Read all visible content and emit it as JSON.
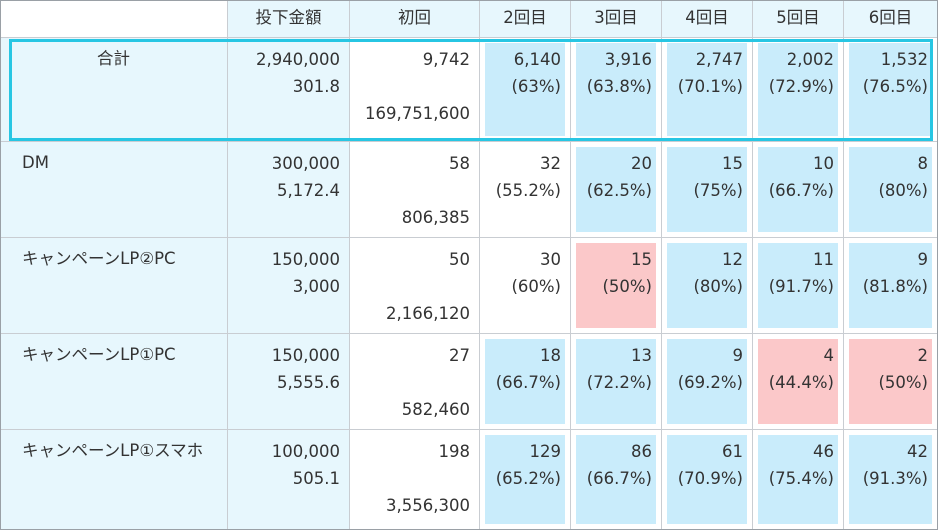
{
  "columns": [
    "",
    "投下金額",
    "初回",
    "2回目",
    "3回目",
    "4回目",
    "5回目",
    "6回目"
  ],
  "rows": [
    {
      "label": "合計",
      "investment": "2,940,000",
      "cpa": "301.8",
      "first_count": "9,742",
      "first_revenue": "169,751,600",
      "repeats": [
        {
          "count": "6,140",
          "rate": "(63%)",
          "highlight": "blue"
        },
        {
          "count": "3,916",
          "rate": "(63.8%)",
          "highlight": "blue"
        },
        {
          "count": "2,747",
          "rate": "(70.1%)",
          "highlight": "blue"
        },
        {
          "count": "2,002",
          "rate": "(72.9%)",
          "highlight": "blue"
        },
        {
          "count": "1,532",
          "rate": "(76.5%)",
          "highlight": "blue"
        }
      ]
    },
    {
      "label": "DM",
      "investment": "300,000",
      "cpa": "5,172.4",
      "first_count": "58",
      "first_revenue": "806,385",
      "repeats": [
        {
          "count": "32",
          "rate": "(55.2%)",
          "highlight": "none"
        },
        {
          "count": "20",
          "rate": "(62.5%)",
          "highlight": "blue"
        },
        {
          "count": "15",
          "rate": "(75%)",
          "highlight": "blue"
        },
        {
          "count": "10",
          "rate": "(66.7%)",
          "highlight": "blue"
        },
        {
          "count": "8",
          "rate": "(80%)",
          "highlight": "blue"
        }
      ]
    },
    {
      "label": "キャンペーンLP②PC",
      "investment": "150,000",
      "cpa": "3,000",
      "first_count": "50",
      "first_revenue": "2,166,120",
      "repeats": [
        {
          "count": "30",
          "rate": "(60%)",
          "highlight": "none"
        },
        {
          "count": "15",
          "rate": "(50%)",
          "highlight": "pink"
        },
        {
          "count": "12",
          "rate": "(80%)",
          "highlight": "blue"
        },
        {
          "count": "11",
          "rate": "(91.7%)",
          "highlight": "blue"
        },
        {
          "count": "9",
          "rate": "(81.8%)",
          "highlight": "blue"
        }
      ]
    },
    {
      "label": "キャンペーンLP①PC",
      "investment": "150,000",
      "cpa": "5,555.6",
      "first_count": "27",
      "first_revenue": "582,460",
      "repeats": [
        {
          "count": "18",
          "rate": "(66.7%)",
          "highlight": "blue"
        },
        {
          "count": "13",
          "rate": "(72.2%)",
          "highlight": "blue"
        },
        {
          "count": "9",
          "rate": "(69.2%)",
          "highlight": "blue"
        },
        {
          "count": "4",
          "rate": "(44.4%)",
          "highlight": "pink"
        },
        {
          "count": "2",
          "rate": "(50%)",
          "highlight": "pink"
        }
      ]
    },
    {
      "label": "キャンペーンLP①スマホ",
      "investment": "100,000",
      "cpa": "505.1",
      "first_count": "198",
      "first_revenue": "3,556,300",
      "repeats": [
        {
          "count": "129",
          "rate": "(65.2%)",
          "highlight": "blue"
        },
        {
          "count": "86",
          "rate": "(66.7%)",
          "highlight": "blue"
        },
        {
          "count": "61",
          "rate": "(70.9%)",
          "highlight": "blue"
        },
        {
          "count": "46",
          "rate": "(75.4%)",
          "highlight": "blue"
        },
        {
          "count": "42",
          "rate": "(91.3%)",
          "highlight": "blue"
        }
      ]
    }
  ],
  "colors": {
    "header_bg": "#e7f7fd",
    "highlight_blue": "#c9ecfb",
    "highlight_pink": "#fbc8c9",
    "selection_border": "#27c6e3",
    "grid": "#c9cdd2",
    "text": "#333333"
  }
}
